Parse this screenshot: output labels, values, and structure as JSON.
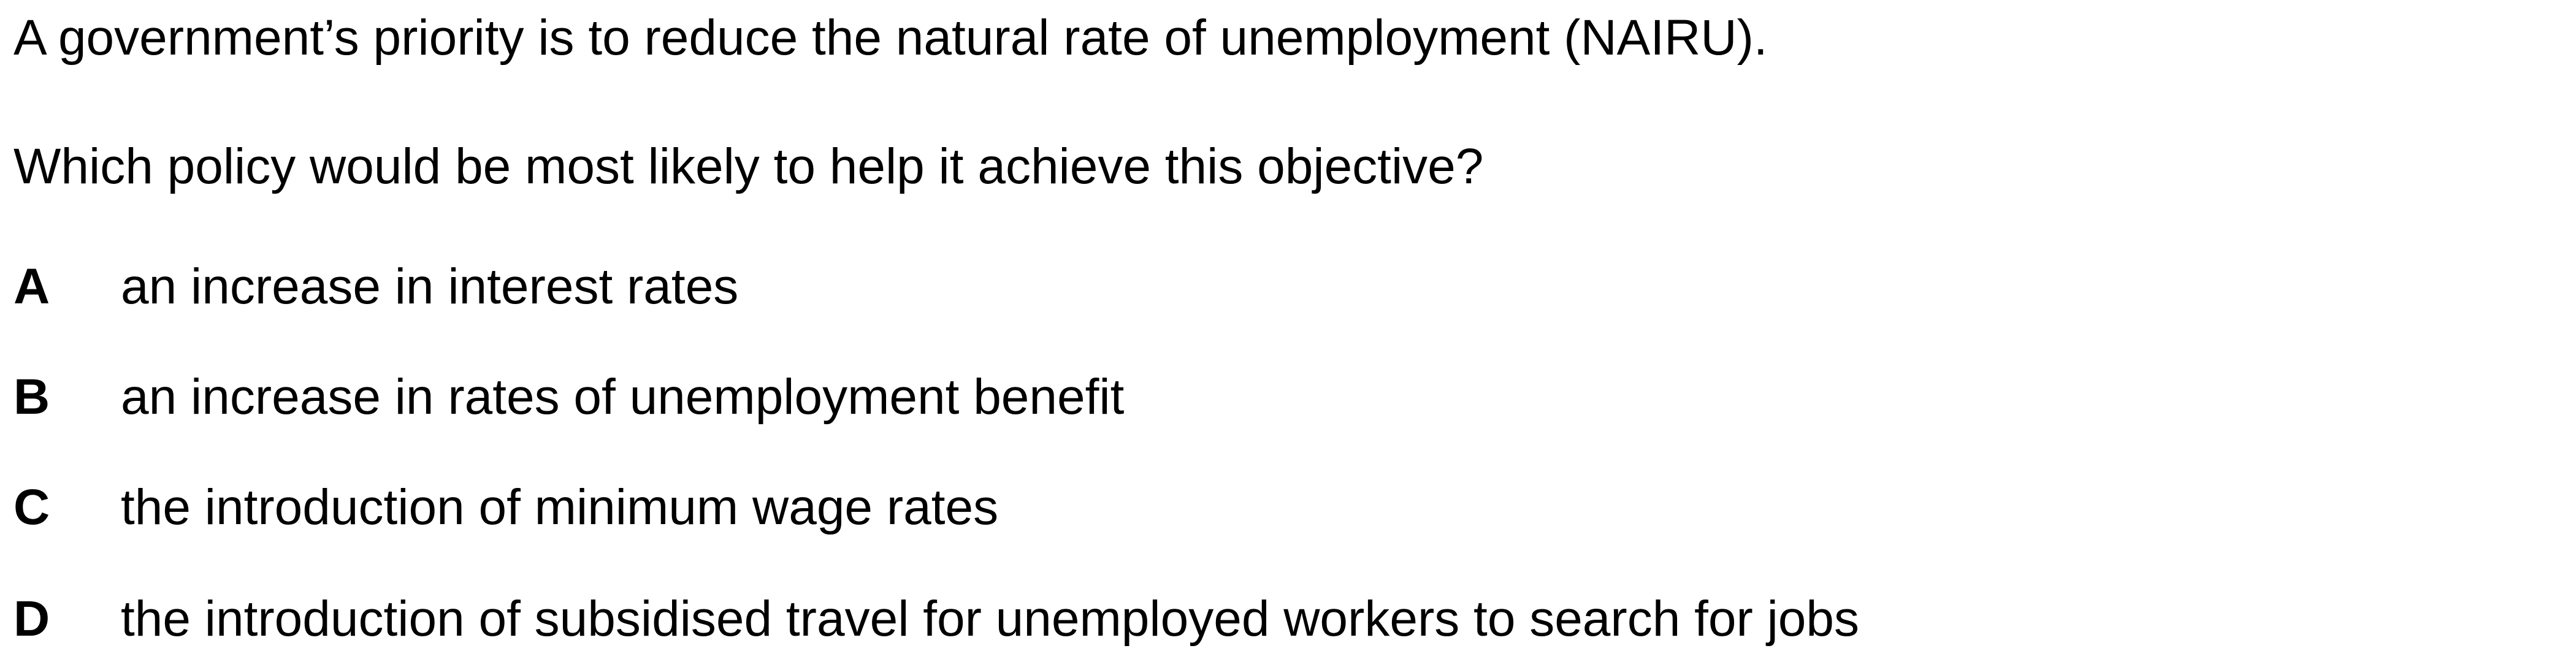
{
  "question": {
    "stem_1": "A government’s priority is to reduce the natural rate of unemployment (NAIRU).",
    "stem_2": "Which policy would be most likely to help it achieve this objective?",
    "options": [
      {
        "letter": "A",
        "text": "an increase in interest rates"
      },
      {
        "letter": "B",
        "text": "an increase in rates of unemployment benefit"
      },
      {
        "letter": "C",
        "text": "the introduction of minimum wage rates"
      },
      {
        "letter": "D",
        "text": "the introduction of subsidised travel for unemployed workers to search for jobs"
      }
    ]
  }
}
